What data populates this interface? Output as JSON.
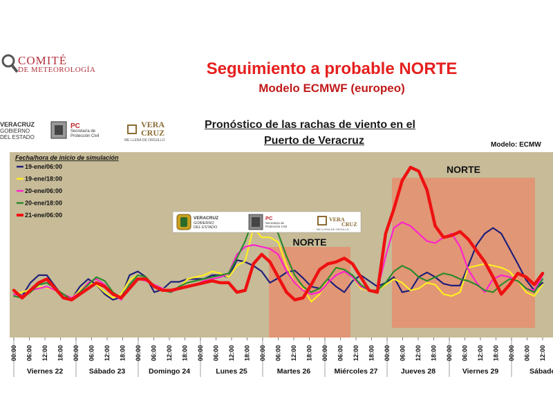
{
  "header": {
    "org_name": "COMITÉ",
    "org_sub": "DE METEOROLOGÍA",
    "title": "Seguimiento a probable NORTE",
    "subtitle": "Modelo ECMWF (europeo)"
  },
  "logos": {
    "veracruz_1": "VERACRUZ",
    "veracruz_2": "GOBIERNO",
    "veracruz_3": "DEL ESTADO",
    "pc_1": "PC",
    "pc_2": "Secretaría de",
    "pc_3": "Protección Civil",
    "vera_1": "VERA",
    "vera_2": "CRUZ",
    "vera_3": "ME LLENA DE ORGULLO"
  },
  "chart_data": {
    "type": "line",
    "title": "Pronóstico de las rachas de viento en el Puerto de Veracruz",
    "model_label": "Modelo: ECMW",
    "legend_title": "Fecha/hora de inicio de simulación",
    "legend_placement": "top-left",
    "x_ticks": [
      "00:00",
      "06:00",
      "12:00",
      "18:00",
      "00:00",
      "06:00",
      "12:00",
      "18:00",
      "00:00",
      "06:00",
      "12:00",
      "18:00",
      "00:00",
      "06:00",
      "12:00",
      "18:00",
      "00:00",
      "06:00",
      "12:00",
      "18:00",
      "00:00",
      "06:00",
      "12:00",
      "18:00",
      "00:00",
      "06:00",
      "12:00",
      "18:00",
      "00:00",
      "06:00",
      "12:00",
      "18:00",
      "00:00",
      "06:00",
      "12:00"
    ],
    "day_labels": [
      "Viernes 22",
      "Sábado 23",
      "Domingo 24",
      "Lunes 25",
      "Martes 26",
      "Miércoles 27",
      "Jueves 28",
      "Viernes 29",
      "Sábado"
    ],
    "annotations": [
      {
        "label": "NORTE",
        "x_start": 16,
        "x_end": 21
      },
      {
        "label": "NORTE",
        "x_start": 24,
        "x_end": 32
      }
    ],
    "y_relative_range": [
      0,
      100
    ],
    "series": [
      {
        "name": "19-ene/06:00",
        "color": "#1f1f7a",
        "values": [
          44,
          38,
          52,
          60,
          60,
          48,
          37,
          35,
          48,
          56,
          50,
          40,
          34,
          37,
          60,
          64,
          58,
          42,
          45,
          53,
          53,
          56,
          56,
          56,
          60,
          60,
          58,
          76,
          74,
          70,
          64,
          52,
          57,
          63,
          65,
          57,
          48,
          46,
          56,
          48,
          42,
          54,
          60,
          54,
          48,
          52,
          58,
          42,
          44,
          58,
          63,
          58,
          51,
          49,
          49,
          70,
          92,
          104,
          110,
          104,
          88,
          72,
          55,
          44,
          52
        ]
      },
      {
        "name": "19-ene/18:00",
        "color": "#ffee22",
        "values": [
          40,
          42,
          45,
          48,
          47,
          44,
          40,
          36,
          44,
          52,
          50,
          42,
          36,
          40,
          55,
          60,
          58,
          48,
          46,
          44,
          46,
          56,
          58,
          60,
          64,
          62,
          58,
          70,
          75,
          110,
          100,
          100,
          95,
          70,
          52,
          46,
          32,
          40,
          56,
          68,
          66,
          58,
          46,
          44,
          44,
          50,
          56,
          52,
          44,
          46,
          52,
          50,
          40,
          38,
          42,
          68,
          70,
          72,
          70,
          68,
          64,
          54,
          42,
          38,
          50
        ]
      },
      {
        "name": "20-ene/06:00",
        "color": "#ff22cc",
        "values": [
          40,
          38,
          44,
          46,
          48,
          44,
          40,
          36,
          42,
          52,
          56,
          50,
          40,
          34,
          50,
          56,
          54,
          50,
          46,
          42,
          46,
          48,
          50,
          54,
          56,
          58,
          62,
          82,
          90,
          92,
          90,
          88,
          82,
          64,
          52,
          44,
          40,
          42,
          52,
          60,
          64,
          58,
          48,
          44,
          44,
          80,
          110,
          116,
          112,
          104,
          96,
          94,
          100,
          104,
          90,
          66,
          52,
          42,
          56,
          60,
          58,
          54,
          46,
          44,
          60
        ]
      },
      {
        "name": "20-ene/18:00",
        "color": "#2a8a2a",
        "values": [
          38,
          36,
          42,
          50,
          52,
          46,
          40,
          34,
          42,
          50,
          58,
          54,
          42,
          36,
          50,
          60,
          58,
          48,
          44,
          42,
          48,
          52,
          54,
          56,
          58,
          60,
          62,
          78,
          96,
          120,
          124,
          118,
          104,
          80,
          60,
          48,
          42,
          46,
          56,
          68,
          66,
          60,
          50,
          44,
          44,
          52,
          64,
          70,
          66,
          58,
          54,
          58,
          62,
          60,
          56,
          54,
          50,
          44,
          42,
          50,
          56,
          54,
          46,
          42,
          56
        ]
      },
      {
        "name": "21-ene/06:00",
        "color": "#ee1111",
        "values": [
          44,
          36,
          44,
          52,
          56,
          46,
          36,
          34,
          40,
          46,
          52,
          48,
          40,
          36,
          46,
          56,
          56,
          48,
          44,
          44,
          46,
          48,
          50,
          52,
          54,
          52,
          52,
          42,
          44,
          72,
          82,
          74,
          58,
          42,
          34,
          36,
          50,
          66,
          72,
          74,
          78,
          72,
          58,
          44,
          42,
          104,
          130,
          160,
          174,
          170,
          150,
          112,
          100,
          102,
          106,
          98,
          86,
          74,
          58,
          40,
          50,
          62,
          58,
          50,
          62
        ]
      }
    ]
  }
}
